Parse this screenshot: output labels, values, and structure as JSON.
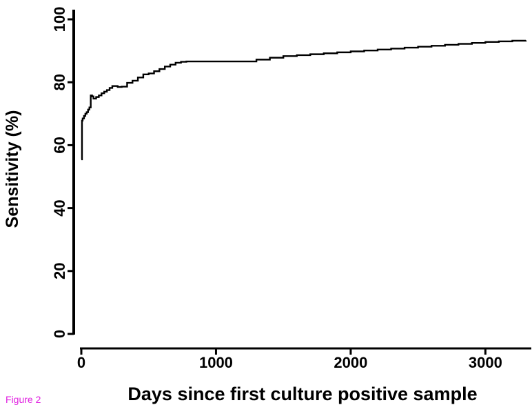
{
  "figure_caption": "Figure 2",
  "chart_data": {
    "type": "line",
    "title": "",
    "xlabel": "Days since first culture positive sample",
    "ylabel": "Sensitivity (%)",
    "xlim": [
      0,
      3300
    ],
    "ylim": [
      0,
      100
    ],
    "x_ticks": [
      0,
      1000,
      2000,
      3000
    ],
    "x_tick_labels": [
      "0",
      "1000",
      "2000",
      "3000"
    ],
    "y_ticks": [
      0,
      20,
      40,
      60,
      80,
      100
    ],
    "y_tick_labels": [
      "0",
      "20",
      "40",
      "60",
      "80",
      "100"
    ],
    "grid": false,
    "line_color": "#000000",
    "series": [
      {
        "step": true,
        "x": [
          0,
          5,
          10,
          20,
          30,
          40,
          50,
          60,
          70,
          80,
          90,
          110,
          130,
          150,
          170,
          190,
          210,
          230,
          250,
          270,
          300,
          340,
          380,
          420,
          460,
          500,
          540,
          580,
          620,
          660,
          700,
          740,
          780,
          900,
          1000,
          1100,
          1200,
          1300,
          1400,
          1500,
          1600,
          1700,
          1800,
          1900,
          2000,
          2100,
          2200,
          2300,
          2400,
          2500,
          2600,
          2700,
          2800,
          2900,
          3000,
          3100,
          3200,
          3300
        ],
        "y": [
          55.5,
          67.8,
          68.5,
          69.3,
          70,
          70.5,
          71.3,
          72,
          75.8,
          75.5,
          74.8,
          75.3,
          75.8,
          76.5,
          77,
          77.5,
          78.2,
          78.8,
          78.8,
          78.5,
          78.6,
          79.8,
          80.5,
          81.5,
          82.5,
          82.8,
          83.5,
          84.2,
          85,
          85.6,
          86.2,
          86.5,
          86.6,
          86.6,
          86.6,
          86.6,
          86.6,
          87.2,
          87.8,
          88.3,
          88.6,
          88.9,
          89.2,
          89.5,
          89.8,
          90.1,
          90.4,
          90.7,
          91,
          91.3,
          91.6,
          91.9,
          92.2,
          92.5,
          92.8,
          93,
          93.2,
          93.3
        ]
      }
    ]
  }
}
